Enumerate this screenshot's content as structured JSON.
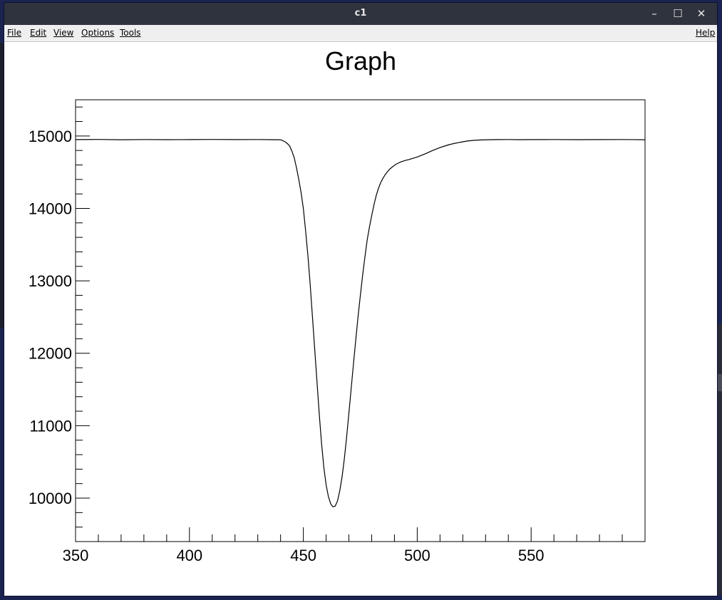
{
  "window": {
    "title": "c1",
    "controls": {
      "minimize": "–",
      "maximize": "☐",
      "close": "✕"
    }
  },
  "menubar": {
    "items": [
      "File",
      "Edit",
      "View",
      "Options",
      "Tools"
    ],
    "help": "Help"
  },
  "chart_data": {
    "type": "line",
    "title": "Graph",
    "xlabel": "",
    "ylabel": "",
    "xlim": [
      350,
      600
    ],
    "ylim": [
      9400,
      15500
    ],
    "x_ticks": [
      350,
      400,
      450,
      500,
      550
    ],
    "y_ticks": [
      10000,
      11000,
      12000,
      13000,
      14000,
      15000
    ],
    "grid": false,
    "series": [
      {
        "x": [
          350,
          360,
          370,
          380,
          390,
          400,
          410,
          420,
          430,
          440,
          441,
          442,
          443,
          444,
          445,
          446,
          447,
          448,
          449,
          450,
          451,
          452,
          453,
          454,
          455,
          456,
          457,
          458,
          459,
          460,
          461,
          462,
          463,
          464,
          465,
          466,
          467,
          468,
          469,
          470,
          471,
          472,
          473,
          474,
          475,
          476,
          477,
          478,
          479,
          480,
          481,
          482,
          483,
          484,
          485,
          486,
          487,
          488,
          489,
          490,
          491,
          492,
          493,
          494,
          495,
          496,
          497,
          498,
          499,
          500,
          502,
          504,
          506,
          508,
          510,
          512,
          514,
          516,
          518,
          520,
          522,
          525,
          528,
          531,
          535,
          540,
          545,
          550,
          560,
          570,
          580,
          590,
          600
        ],
        "y": [
          14950,
          14952,
          14948,
          14951,
          14949,
          14950,
          14952,
          14950,
          14951,
          14948,
          14935,
          14920,
          14895,
          14860,
          14790,
          14700,
          14560,
          14400,
          14220,
          14000,
          13690,
          13350,
          12950,
          12500,
          12050,
          11600,
          11150,
          10750,
          10420,
          10180,
          10020,
          9920,
          9880,
          9890,
          9960,
          10100,
          10290,
          10540,
          10840,
          11170,
          11510,
          11850,
          12180,
          12500,
          12790,
          13070,
          13320,
          13560,
          13740,
          13900,
          14050,
          14180,
          14280,
          14360,
          14420,
          14470,
          14510,
          14545,
          14570,
          14595,
          14615,
          14630,
          14645,
          14655,
          14665,
          14672,
          14680,
          14690,
          14700,
          14710,
          14735,
          14760,
          14790,
          14815,
          14840,
          14860,
          14880,
          14895,
          14908,
          14920,
          14930,
          14940,
          14945,
          14948,
          14950,
          14951,
          14949,
          14950,
          14951,
          14949,
          14950,
          14951,
          14948
        ]
      }
    ]
  }
}
